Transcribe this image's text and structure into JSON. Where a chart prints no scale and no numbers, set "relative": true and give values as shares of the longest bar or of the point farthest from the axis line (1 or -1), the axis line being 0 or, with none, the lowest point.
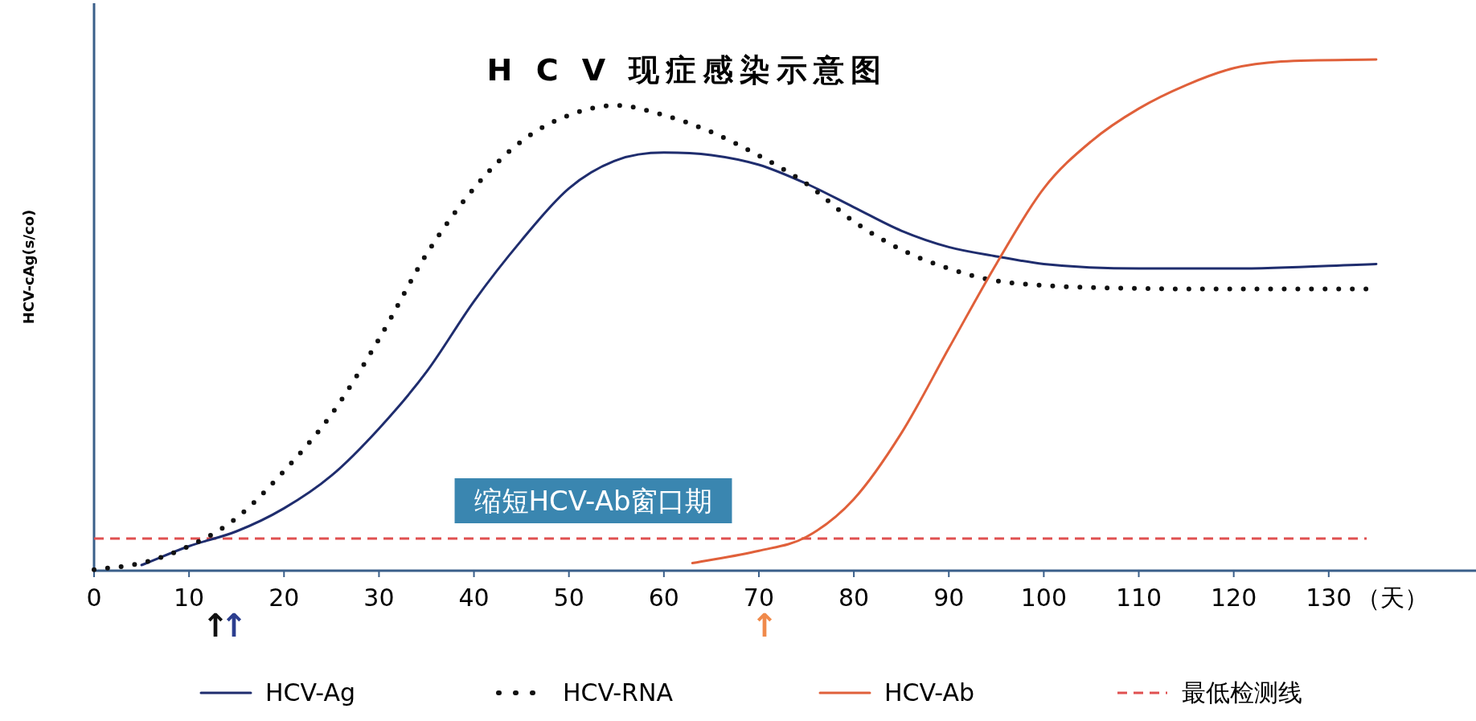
{
  "chart_data": {
    "type": "line",
    "relative": true,
    "title": "H C V 现症感染示意图",
    "ylabel": "HCV-cAg(s/co)",
    "xlabel": "（天）",
    "xlim": [
      0,
      145
    ],
    "xticks": [
      0,
      10,
      20,
      30,
      40,
      50,
      60,
      70,
      80,
      90,
      100,
      110,
      120,
      130
    ],
    "grid": false,
    "legend": "bottom",
    "series": [
      {
        "name": "HCV-Ag",
        "color": "#1f2d6e",
        "line_style": "solid",
        "x": [
          5,
          10,
          15,
          20,
          25,
          30,
          35,
          40,
          45,
          50,
          55,
          60,
          65,
          70,
          75,
          80,
          85,
          90,
          95,
          100,
          110,
          120,
          135
        ],
        "values": [
          0.011,
          0.048,
          0.077,
          0.122,
          0.186,
          0.278,
          0.389,
          0.527,
          0.646,
          0.748,
          0.803,
          0.818,
          0.813,
          0.794,
          0.757,
          0.711,
          0.665,
          0.633,
          0.615,
          0.6,
          0.591,
          0.591,
          0.6
        ]
      },
      {
        "name": "HCV-RNA",
        "color": "#111111",
        "line_style": "dotted",
        "x": [
          0,
          5,
          10,
          15,
          20,
          25,
          30,
          35,
          40,
          45,
          50,
          55,
          60,
          65,
          70,
          75,
          80,
          85,
          90,
          95,
          100,
          110,
          120,
          134
        ],
        "values": [
          0.002,
          0.015,
          0.048,
          0.103,
          0.195,
          0.306,
          0.453,
          0.619,
          0.748,
          0.84,
          0.891,
          0.91,
          0.891,
          0.858,
          0.812,
          0.757,
          0.683,
          0.628,
          0.591,
          0.567,
          0.558,
          0.552,
          0.551,
          0.551
        ]
      },
      {
        "name": "HCV-Ab",
        "color": "#e0603a",
        "line_style": "solid",
        "x": [
          63,
          70,
          75,
          80,
          85,
          90,
          95,
          100,
          105,
          110,
          115,
          120,
          125,
          135
        ],
        "values": [
          0.015,
          0.039,
          0.066,
          0.14,
          0.269,
          0.435,
          0.6,
          0.748,
          0.84,
          0.904,
          0.95,
          0.983,
          0.996,
          1.0
        ]
      }
    ],
    "ref_lines": [
      {
        "axis": "y",
        "value": 0.063,
        "label": "最低检测线",
        "color": "#e05050",
        "line_style": "dashed"
      }
    ],
    "annotations": [
      "缩短HCV-Ab窗口期",
      "↑",
      "↑",
      "↑"
    ]
  }
}
